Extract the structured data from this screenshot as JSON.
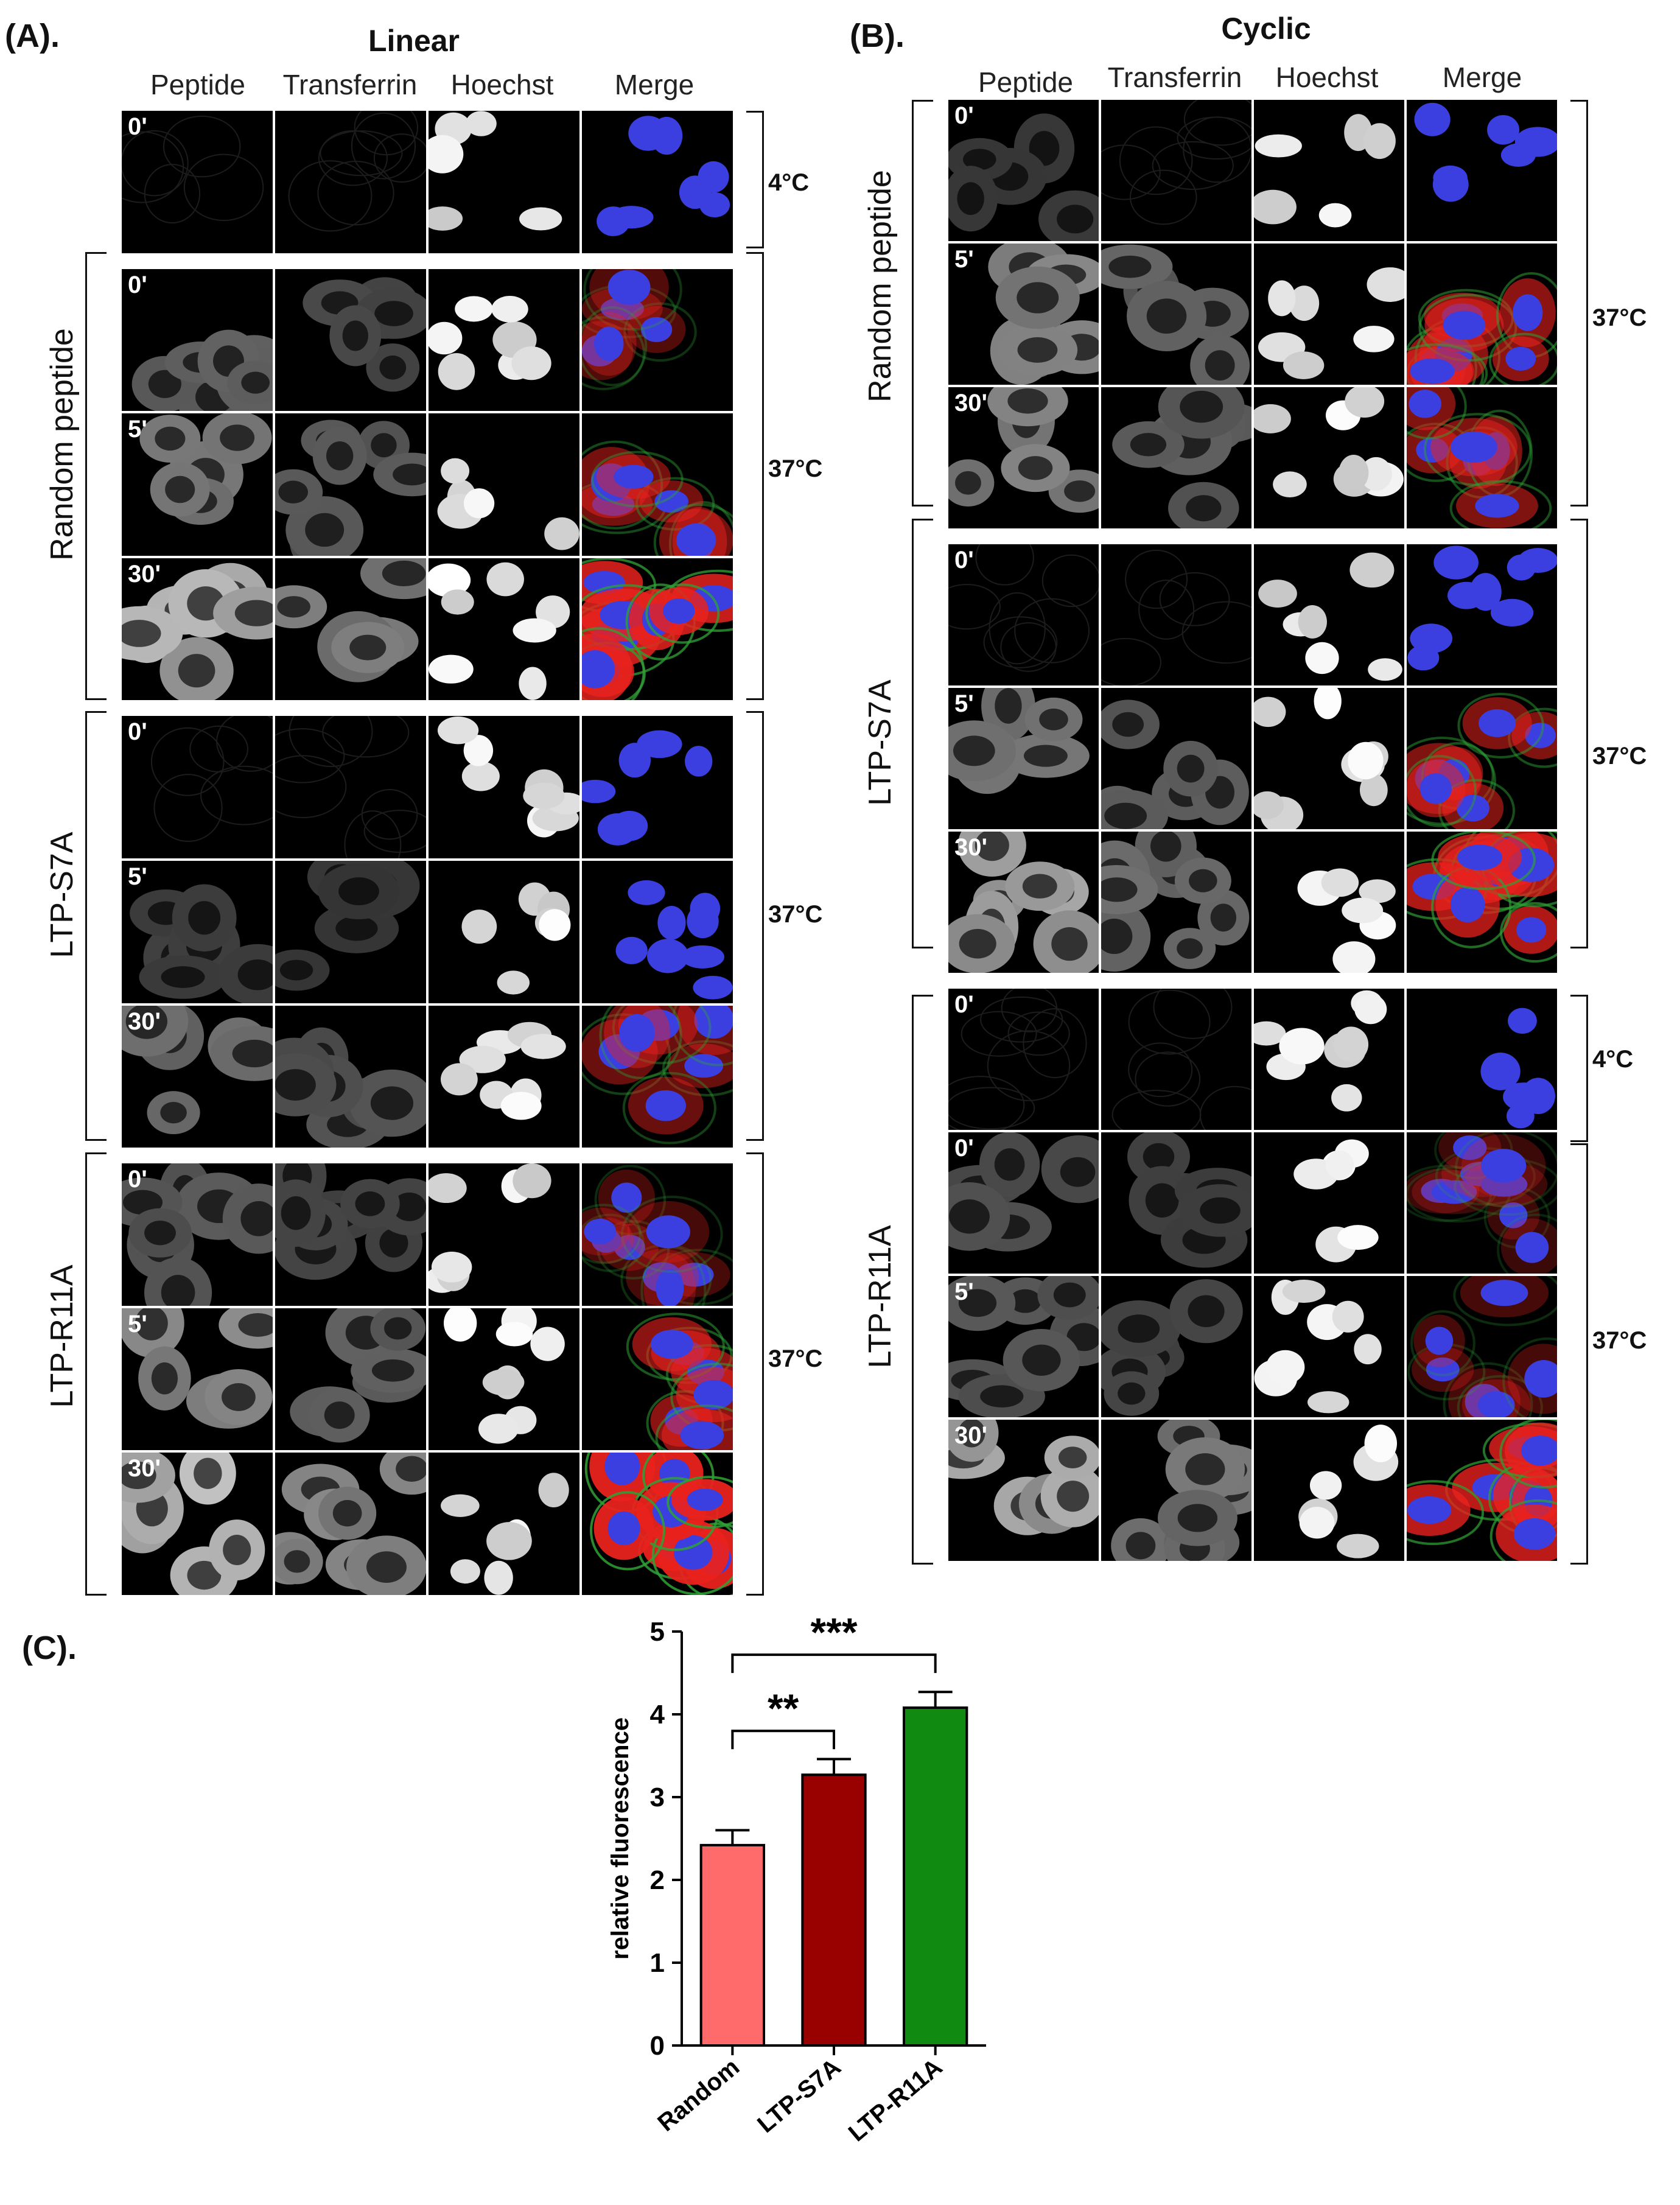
{
  "panel_a": {
    "label": "(A).",
    "title": "Linear",
    "columns": [
      "Peptide",
      "Transferrin",
      "Hoechst",
      "Merge"
    ],
    "time_labels": [
      "0'",
      "0'",
      "5'",
      "30'",
      "0'",
      "5'",
      "30'",
      "0'",
      "5'",
      "30'"
    ],
    "groups": [
      "Random peptide",
      "LTP-S7A",
      "LTP-R11A"
    ],
    "temps": [
      "4°C",
      "37°C",
      "37°C",
      "37°C"
    ]
  },
  "panel_b": {
    "label": "(B).",
    "title": "Cyclic",
    "columns": [
      "Peptide",
      "Transferrin",
      "Hoechst",
      "Merge"
    ],
    "time_labels": [
      "0'",
      "5'",
      "30'",
      "0'",
      "5'",
      "30'",
      "0'",
      "0'",
      "5'",
      "30'"
    ],
    "groups": [
      "Random peptide",
      "LTP-S7A",
      "LTP-R11A"
    ],
    "temps": [
      "37°C",
      "37°C",
      "4°C",
      "37°C"
    ]
  },
  "panel_c": {
    "label": "(C)."
  },
  "colors": {
    "peptide_red": "#e8221e",
    "transferrin_green": "#2fa035",
    "hoechst_blue": "#3b3fe0",
    "bar_random": "#ff6b6b",
    "bar_s7a": "#990000",
    "bar_r11a": "#118a11"
  },
  "chart_data": {
    "type": "bar",
    "categories": [
      "Random",
      "LTP-S7A",
      "LTP-R11A"
    ],
    "values": [
      2.42,
      3.27,
      4.08
    ],
    "errors": [
      0.18,
      0.19,
      0.19
    ],
    "ylabel": "relative fluorescence",
    "xlabel": "",
    "ylim": [
      0,
      5
    ],
    "yticks": [
      0,
      1,
      2,
      3,
      4,
      5
    ],
    "significance": [
      {
        "from": "Random",
        "to": "LTP-S7A",
        "label": "**"
      },
      {
        "from": "Random",
        "to": "LTP-R11A",
        "label": "***"
      }
    ],
    "grid": false
  }
}
